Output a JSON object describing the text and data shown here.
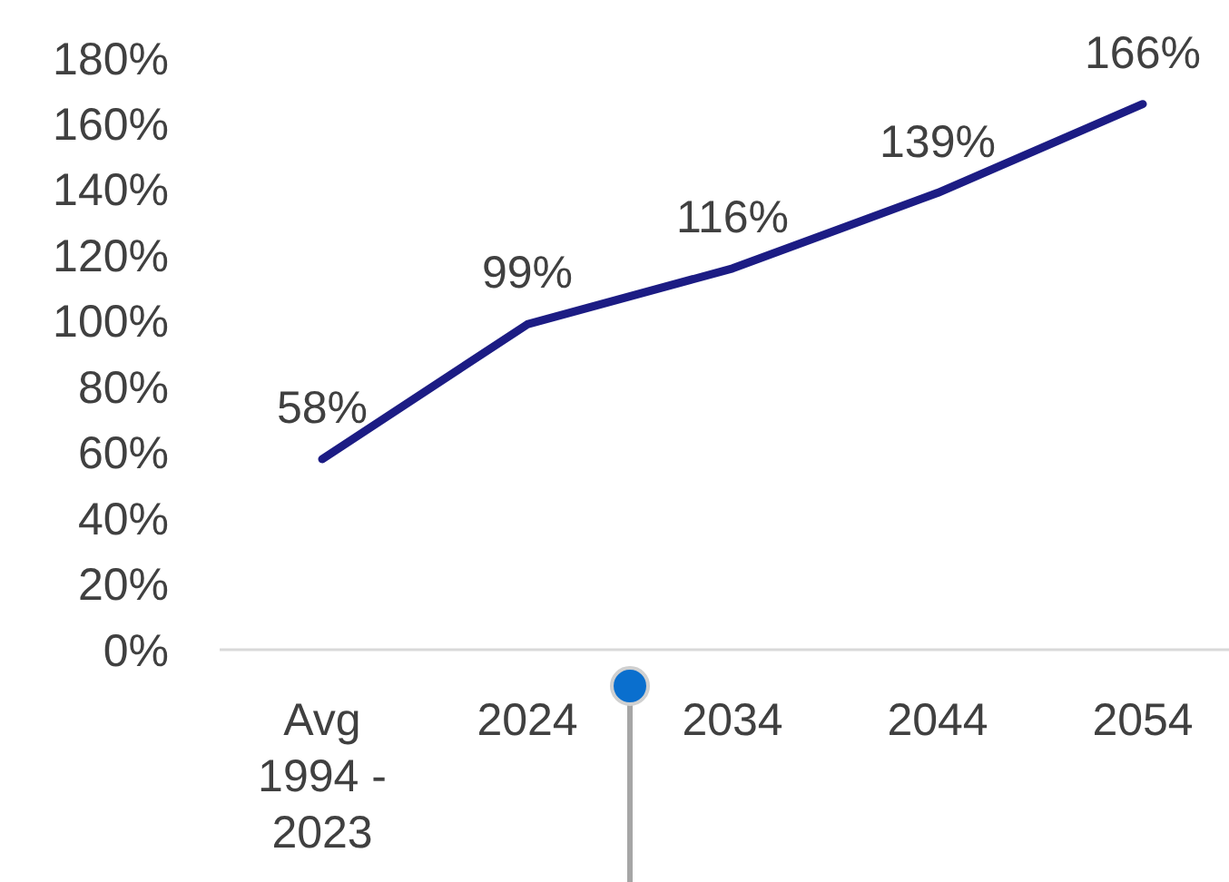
{
  "chart_data": {
    "type": "line",
    "categories": [
      "Avg 1994 - 2023",
      "2024",
      "2034",
      "2044",
      "2054"
    ],
    "series": [
      {
        "color": "#1c1c84",
        "values": [
          58,
          99,
          116,
          139,
          166
        ],
        "value_labels": [
          "58%",
          "99%",
          "116%",
          "139%",
          "166%"
        ]
      }
    ],
    "ylim": [
      0,
      180
    ],
    "yticks": [
      {
        "value": 0,
        "label": "0%"
      },
      {
        "value": 20,
        "label": "20%"
      },
      {
        "value": 40,
        "label": "40%"
      },
      {
        "value": 60,
        "label": "60%"
      },
      {
        "value": 80,
        "label": "80%"
      },
      {
        "value": 100,
        "label": "100%"
      },
      {
        "value": 120,
        "label": "120%"
      },
      {
        "value": 140,
        "label": "140%"
      },
      {
        "value": 160,
        "label": "160%"
      },
      {
        "value": 180,
        "label": "180%"
      }
    ],
    "grid": false,
    "marker": "none",
    "line_style": "solid"
  }
}
